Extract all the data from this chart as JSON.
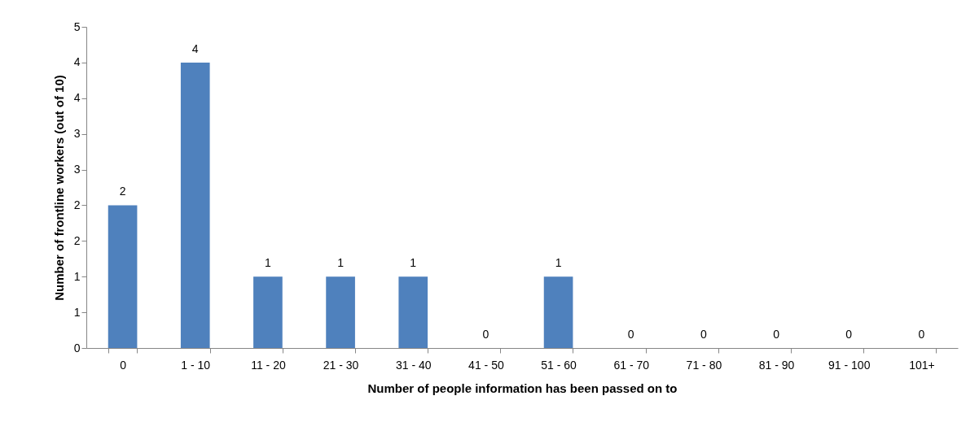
{
  "chart_data": {
    "type": "bar",
    "xlabel": "Number of people information has been passed on to",
    "ylabel": "Number of frontline workers (out of 10)",
    "categories": [
      "0",
      "1 - 10",
      "11 - 20",
      "21 - 30",
      "31 - 40",
      "41 - 50",
      "51 - 60",
      "61 - 70",
      "71 - 80",
      "81 - 90",
      "91 - 100",
      "101+"
    ],
    "values": [
      2,
      4,
      1,
      1,
      1,
      0,
      1,
      0,
      0,
      0,
      0,
      0
    ],
    "color": "#4f81bd",
    "data_labels": true,
    "grid": false,
    "legend": false,
    "ylim": [
      0,
      4.5
    ],
    "yticks": [
      0,
      {
        "value": 0.5,
        "label": "1"
      },
      1,
      {
        "value": 1.5,
        "label": "2"
      },
      2,
      {
        "value": 2.5,
        "label": "3"
      },
      3,
      {
        "value": 3.5,
        "label": "4"
      },
      4,
      {
        "value": 4.5,
        "label": "5"
      }
    ]
  }
}
